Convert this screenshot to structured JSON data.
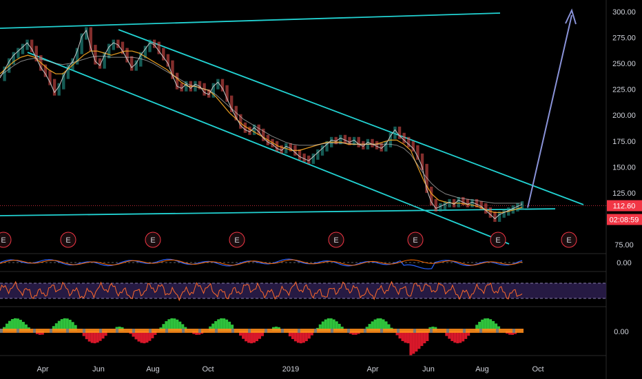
{
  "chart_data": {
    "type": "line",
    "title": "",
    "price_axis": {
      "ticks": [
        "300.00",
        "275.00",
        "250.00",
        "225.00",
        "200.00",
        "175.00",
        "150.00",
        "125.00",
        "75.00"
      ],
      "tick_values": [
        300,
        275,
        250,
        225,
        200,
        175,
        150,
        125,
        75
      ],
      "range": [
        70,
        307
      ]
    },
    "time_axis": {
      "labels": [
        "Apr",
        "Jun",
        "Aug",
        "Oct",
        "2019",
        "Apr",
        "Jun",
        "Aug",
        "Oct"
      ]
    },
    "last_price": {
      "label": "112.60",
      "value": 112.6,
      "color": "#f23645"
    },
    "countdown": {
      "label": "02:08:59",
      "color": "#f23645"
    },
    "price_series": {
      "name": "",
      "color": "#c8c8c8",
      "values": [
        236,
        244,
        252,
        258,
        262,
        266,
        270,
        264,
        255,
        246,
        240,
        232,
        222,
        228,
        238,
        246,
        252,
        262,
        276,
        282,
        265,
        252,
        248,
        258,
        266,
        270,
        268,
        262,
        254,
        246,
        250,
        258,
        264,
        270,
        268,
        262,
        256,
        250,
        238,
        228,
        226,
        230,
        226,
        230,
        228,
        222,
        220,
        228,
        232,
        226,
        216,
        206,
        198,
        190,
        186,
        184,
        188,
        184,
        178,
        174,
        172,
        168,
        166,
        170,
        168,
        164,
        160,
        158,
        156,
        160,
        164,
        168,
        172,
        176,
        175,
        178,
        176,
        174,
        176,
        172,
        170,
        174,
        172,
        170,
        168,
        172,
        180,
        186,
        180,
        176,
        172,
        168,
        160,
        150,
        128,
        116,
        110,
        112,
        114,
        116,
        114,
        118,
        116,
        114,
        116,
        114,
        112,
        108,
        104,
        100,
        104,
        106,
        108,
        110,
        112,
        114
      ]
    },
    "ema_series": [
      {
        "name": "",
        "color": "#f5a623",
        "values": [
          240,
          246,
          252,
          256,
          258,
          256,
          250,
          244,
          240,
          240,
          246,
          252,
          258,
          262,
          262,
          260,
          258,
          260,
          262,
          262,
          260,
          256,
          252,
          248,
          244,
          238,
          232,
          228,
          228,
          226,
          224,
          218,
          210,
          202,
          196,
          190,
          186,
          182,
          178,
          174,
          170,
          168,
          166,
          166,
          168,
          170,
          172,
          174,
          174,
          174,
          172,
          172,
          172,
          172,
          172,
          174,
          176,
          176,
          172,
          166,
          150,
          135,
          124,
          118,
          116,
          115,
          115,
          114,
          113,
          111,
          108,
          106,
          106,
          107,
          109,
          111
        ]
      },
      {
        "name": "",
        "color": "#e0e0e0",
        "values": [
          238,
          243,
          248,
          252,
          254,
          255,
          254,
          252,
          250,
          249,
          250,
          252,
          254,
          256,
          257,
          257,
          256,
          256,
          256,
          256,
          255,
          253,
          250,
          246,
          242,
          238,
          234,
          230,
          228,
          226,
          224,
          220,
          214,
          208,
          202,
          196,
          192,
          188,
          184,
          180,
          177,
          174,
          172,
          171,
          171,
          171,
          172,
          173,
          173,
          173,
          173,
          172,
          172,
          172,
          172,
          172,
          172,
          171,
          168,
          162,
          152,
          142,
          134,
          128,
          124,
          122,
          120,
          119,
          118,
          117,
          116,
          115,
          115,
          115,
          115,
          115
        ]
      }
    ],
    "trend_lines": [
      {
        "name": "",
        "color": "#22d3d3",
        "from": [
          "2018-01",
          "284.0"
        ],
        "to": [
          "2019-09",
          "298.0"
        ]
      },
      {
        "name": "",
        "color": "#22d3d3",
        "from": [
          "2018-05",
          "282.0"
        ],
        "to": [
          "2019-10",
          "112.0"
        ]
      },
      {
        "name": "",
        "color": "#22d3d3",
        "from": [
          "2018-02",
          "266.0"
        ],
        "to": [
          "2019-09",
          "80.0"
        ]
      },
      {
        "name": "",
        "color": "#22d3d3",
        "from": [
          "2018-01",
          "107.0"
        ],
        "to": [
          "2019-09",
          "110.0"
        ]
      }
    ],
    "projection_arrow": {
      "color": "#8a93d9",
      "from_value": 112,
      "to_value": 302
    },
    "earnings_markers": {
      "label": "E",
      "count": 8,
      "color": "#f23645"
    },
    "indicators": [
      {
        "name": "",
        "axis_label": "0.00",
        "type": "macd"
      },
      {
        "name": "",
        "axis_label": "",
        "type": "rsi",
        "band_color": "#2a1d4a",
        "line_color": "#ff6a2a"
      },
      {
        "name": "",
        "axis_label": "0.00",
        "type": "histogram",
        "pos_color": "#2fc23c",
        "neg_color": "#d8182a",
        "mid_color": "#ff8c1a"
      }
    ],
    "grid": false
  }
}
